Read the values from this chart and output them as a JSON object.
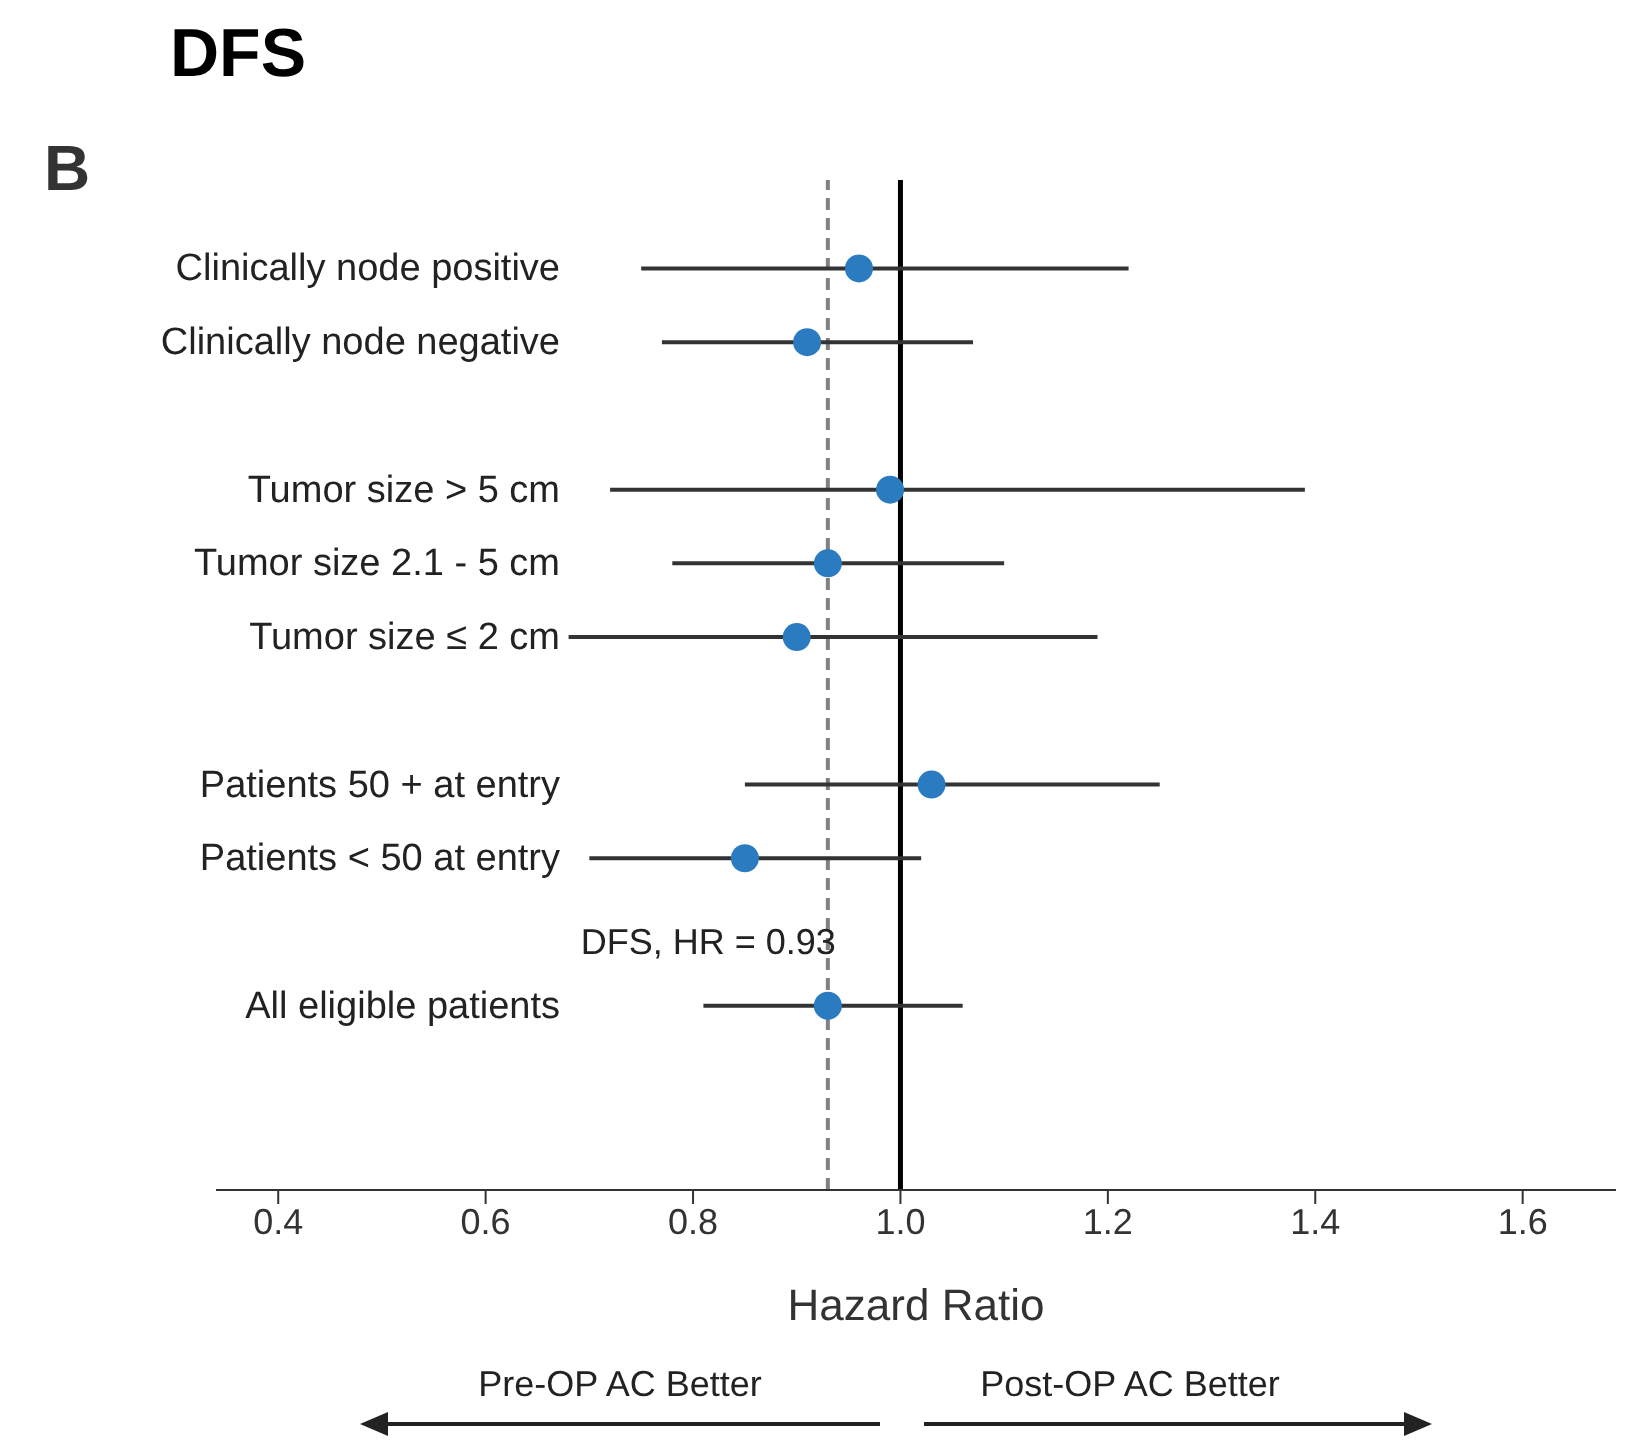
{
  "chart_data": {
    "type": "scatter",
    "title": "DFS",
    "orientation": "horizontal",
    "categories": [
      "Clinically node positive",
      "Clinically node negative",
      null,
      "Tumor size > 5 cm",
      "Tumor size 2.1 - 5 cm",
      "Tumor size ≤ 2 cm",
      null,
      "Patients 50 + at entry",
      "Patients < 50 at entry",
      null,
      "All eligible patients"
    ],
    "values": [
      0.96,
      0.91,
      null,
      0.99,
      0.93,
      0.9,
      null,
      1.03,
      0.85,
      null,
      0.93
    ],
    "errors": [
      [
        0.75,
        1.22
      ],
      [
        0.77,
        1.07
      ],
      null,
      [
        0.72,
        1.39
      ],
      [
        0.78,
        1.1
      ],
      [
        0.68,
        1.19
      ],
      null,
      [
        0.85,
        1.25
      ],
      [
        0.7,
        1.02
      ],
      null,
      [
        0.81,
        1.06
      ]
    ],
    "color": "#2b7bc0",
    "marker": "circle",
    "xlabel": "Hazard Ratio",
    "xlim": [
      0.34,
      1.69
    ],
    "xticks": [
      0.4,
      0.6,
      0.8,
      {
        "value": 1,
        "label": "1.0"
      },
      1.2,
      1.4,
      1.6
    ],
    "ref_lines": [
      {
        "axis": "x",
        "value": 0.93,
        "label": "DFS, HR = 0.93",
        "color": "#808080",
        "line_style": "dashed"
      },
      {
        "axis": "x",
        "value": 1,
        "color": "#000000",
        "line_style": "solid"
      }
    ],
    "annotations": [
      "B",
      "Pre-OP AC Better",
      "Post-OP AC Better"
    ],
    "legend": false,
    "grid": false
  }
}
